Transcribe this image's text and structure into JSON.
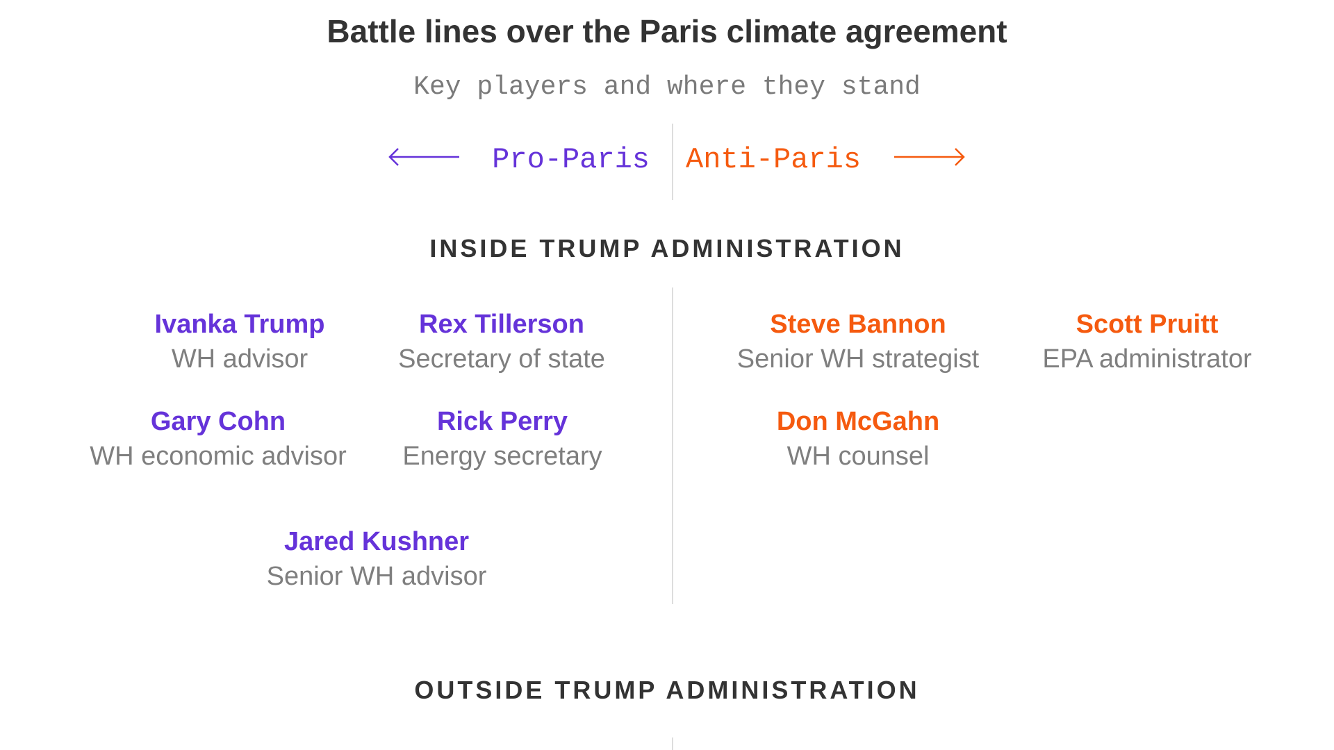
{
  "title": "Battle lines over the Paris climate agreement",
  "subtitle": "Key players and where they stand",
  "legend": {
    "pro_label": "Pro-Paris",
    "anti_label": "Anti-Paris"
  },
  "colors": {
    "pro": "#6533d9",
    "anti": "#f55a0f",
    "heading": "#333333",
    "role": "#7f7f7f",
    "divider": "#dddddd"
  },
  "sections": [
    {
      "heading": "INSIDE TRUMP ADMINISTRATION",
      "pro": [
        {
          "name": "Ivanka Trump",
          "role": "WH advisor"
        },
        {
          "name": "Rex Tillerson",
          "role": "Secretary of state"
        },
        {
          "name": "Gary Cohn",
          "role": "WH economic advisor"
        },
        {
          "name": "Rick Perry",
          "role": "Energy secretary"
        },
        {
          "name": "Jared Kushner",
          "role": "Senior WH advisor"
        }
      ],
      "anti": [
        {
          "name": "Steve Bannon",
          "role": "Senior WH strategist"
        },
        {
          "name": "Scott Pruitt",
          "role": "EPA administrator"
        },
        {
          "name": "Don McGahn",
          "role": "WH counsel"
        }
      ]
    },
    {
      "heading": "OUTSIDE TRUMP ADMINISTRATION",
      "pro": [],
      "anti": []
    }
  ]
}
